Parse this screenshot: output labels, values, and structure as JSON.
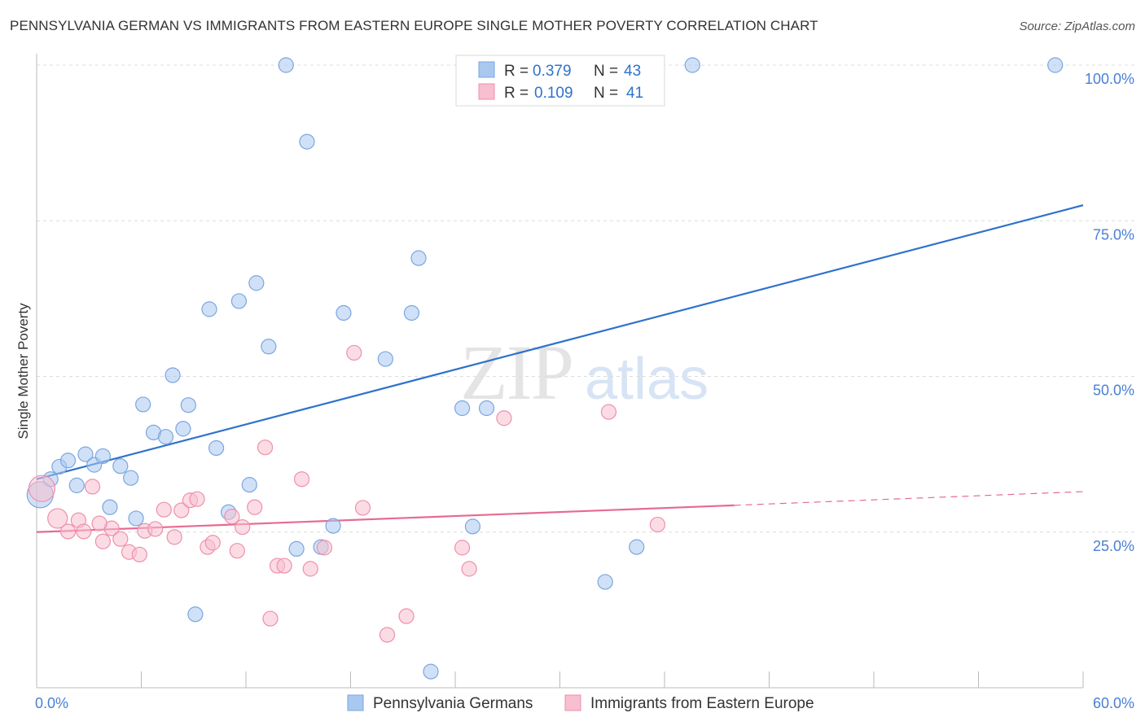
{
  "title": "PENNSYLVANIA GERMAN VS IMMIGRANTS FROM EASTERN EUROPE SINGLE MOTHER POVERTY CORRELATION CHART",
  "source": "Source: ZipAtlas.com",
  "watermark": {
    "zip": "ZIP",
    "atlas": "atlas"
  },
  "legend_box": [
    {
      "r_label": "R =",
      "r_value": "0.379",
      "n_label": "N =",
      "n_value": "43",
      "color": "#a9c8f0",
      "stroke": "#7aa6e0"
    },
    {
      "r_label": "R =",
      "r_value": "0.109",
      "n_label": "N =",
      "n_value": "41",
      "color": "#f7bfcf",
      "stroke": "#ef8faa"
    }
  ],
  "chart_data": {
    "type": "scatter",
    "title": "PENNSYLVANIA GERMAN VS IMMIGRANTS FROM EASTERN EUROPE SINGLE MOTHER POVERTY CORRELATION CHART",
    "xlabel": "",
    "ylabel": "Single Mother Poverty",
    "xlim": [
      0,
      60
    ],
    "ylim": [
      0,
      100
    ],
    "x_tick_labels": [
      "0.0%",
      "60.0%"
    ],
    "y_tick_labels": [
      "25.0%",
      "50.0%",
      "75.0%",
      "100.0%"
    ],
    "y_ticks": [
      25,
      50,
      75,
      100
    ],
    "grid": true,
    "legend": "bottom-center",
    "series": [
      {
        "name": "Pennsylvania Germans",
        "color": "#a9c8f0",
        "stroke": "#7aa6e0",
        "line_color": "#2f72cc",
        "trend": {
          "x": [
            0,
            60
          ],
          "y": [
            33.5,
            77.5
          ]
        },
        "points": [
          [
            0.2,
            31.0
          ],
          [
            0.8,
            33.5
          ],
          [
            1.3,
            35.5
          ],
          [
            1.8,
            36.5
          ],
          [
            2.3,
            32.5
          ],
          [
            2.8,
            37.5
          ],
          [
            3.3,
            35.8
          ],
          [
            3.8,
            37.2
          ],
          [
            4.2,
            29.0
          ],
          [
            4.8,
            35.6
          ],
          [
            5.4,
            33.7
          ],
          [
            5.7,
            27.2
          ],
          [
            6.1,
            45.5
          ],
          [
            6.7,
            41.0
          ],
          [
            7.4,
            40.3
          ],
          [
            7.8,
            50.2
          ],
          [
            8.4,
            41.6
          ],
          [
            8.7,
            45.4
          ],
          [
            9.1,
            11.8
          ],
          [
            9.9,
            60.8
          ],
          [
            10.3,
            38.5
          ],
          [
            11.0,
            28.2
          ],
          [
            11.6,
            62.1
          ],
          [
            12.2,
            32.6
          ],
          [
            12.6,
            65.0
          ],
          [
            13.3,
            54.8
          ],
          [
            14.3,
            100.0
          ],
          [
            14.9,
            22.3
          ],
          [
            15.5,
            87.7
          ],
          [
            16.3,
            22.6
          ],
          [
            17.0,
            26.0
          ],
          [
            17.6,
            60.2
          ],
          [
            20.0,
            52.8
          ],
          [
            21.5,
            60.2
          ],
          [
            21.9,
            69.0
          ],
          [
            22.6,
            2.6
          ],
          [
            24.4,
            44.9
          ],
          [
            25.0,
            25.9
          ],
          [
            25.8,
            44.9
          ],
          [
            32.6,
            17.0
          ],
          [
            34.4,
            22.6
          ],
          [
            37.6,
            100.0
          ],
          [
            58.4,
            100.0
          ]
        ]
      },
      {
        "name": "Immigrants from Eastern Europe",
        "color": "#f7bfcf",
        "stroke": "#ef8faa",
        "line_color": "#e76a93",
        "trend": {
          "x": [
            0,
            40
          ],
          "y": [
            25.0,
            29.3
          ]
        },
        "trend_dashed": {
          "x": [
            40,
            60
          ],
          "y": [
            29.3,
            31.5
          ]
        },
        "points": [
          [
            0.3,
            32.0
          ],
          [
            1.2,
            27.2
          ],
          [
            1.8,
            25.1
          ],
          [
            2.4,
            26.9
          ],
          [
            2.7,
            25.1
          ],
          [
            3.2,
            32.3
          ],
          [
            3.8,
            23.5
          ],
          [
            4.3,
            25.6
          ],
          [
            4.8,
            23.9
          ],
          [
            5.3,
            21.8
          ],
          [
            5.9,
            21.4
          ],
          [
            6.2,
            25.2
          ],
          [
            6.8,
            25.5
          ],
          [
            7.3,
            28.6
          ],
          [
            7.9,
            24.2
          ],
          [
            8.3,
            28.5
          ],
          [
            8.8,
            30.1
          ],
          [
            9.2,
            30.3
          ],
          [
            9.8,
            22.6
          ],
          [
            10.1,
            23.3
          ],
          [
            11.2,
            27.5
          ],
          [
            11.5,
            22.0
          ],
          [
            11.8,
            25.8
          ],
          [
            12.5,
            29.0
          ],
          [
            13.1,
            38.6
          ],
          [
            13.4,
            11.1
          ],
          [
            13.8,
            19.6
          ],
          [
            14.2,
            19.6
          ],
          [
            15.2,
            33.5
          ],
          [
            15.7,
            19.1
          ],
          [
            16.5,
            22.5
          ],
          [
            18.2,
            53.8
          ],
          [
            18.7,
            28.9
          ],
          [
            20.1,
            8.5
          ],
          [
            21.2,
            11.5
          ],
          [
            24.4,
            22.5
          ],
          [
            24.8,
            19.1
          ],
          [
            26.8,
            43.3
          ],
          [
            32.8,
            44.3
          ],
          [
            35.6,
            26.2
          ],
          [
            3.6,
            26.4
          ]
        ]
      }
    ]
  }
}
